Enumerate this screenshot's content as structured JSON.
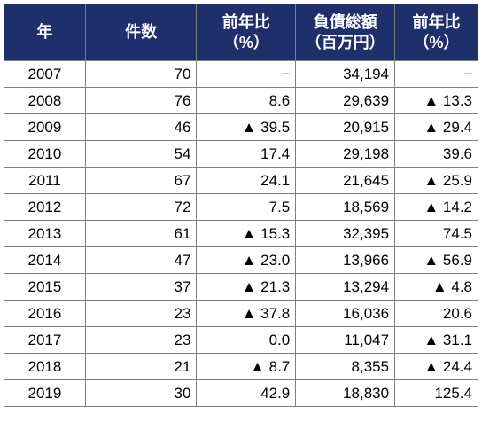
{
  "table": {
    "headers": [
      [
        "年",
        ""
      ],
      [
        "件数",
        ""
      ],
      [
        "前年比",
        "（%）"
      ],
      [
        "負債総額",
        "（百万円）"
      ],
      [
        "前年比",
        "（%）"
      ]
    ],
    "rows": [
      [
        "2007",
        "70",
        "−",
        "34,194",
        "−"
      ],
      [
        "2008",
        "76",
        "8.6",
        "29,639",
        "▲ 13.3"
      ],
      [
        "2009",
        "46",
        "▲ 39.5",
        "20,915",
        "▲ 29.4"
      ],
      [
        "2010",
        "54",
        "17.4",
        "29,198",
        "39.6"
      ],
      [
        "2011",
        "67",
        "24.1",
        "21,645",
        "▲ 25.9"
      ],
      [
        "2012",
        "72",
        "7.5",
        "18,569",
        "▲ 14.2"
      ],
      [
        "2013",
        "61",
        "▲ 15.3",
        "32,395",
        "74.5"
      ],
      [
        "2014",
        "47",
        "▲ 23.0",
        "13,966",
        "▲ 56.9"
      ],
      [
        "2015",
        "37",
        "▲ 21.3",
        "13,294",
        "▲ 4.8"
      ],
      [
        "2016",
        "23",
        "▲ 37.8",
        "16,036",
        "20.6"
      ],
      [
        "2017",
        "23",
        "0.0",
        "11,047",
        "▲ 31.1"
      ],
      [
        "2018",
        "21",
        "▲ 8.7",
        "8,355",
        "▲ 24.4"
      ],
      [
        "2019",
        "30",
        "42.9",
        "18,830",
        "125.4"
      ]
    ]
  },
  "colors": {
    "header_bg": "#1f2f6b",
    "header_text": "#ffffff",
    "border": "#7f7f7f"
  }
}
